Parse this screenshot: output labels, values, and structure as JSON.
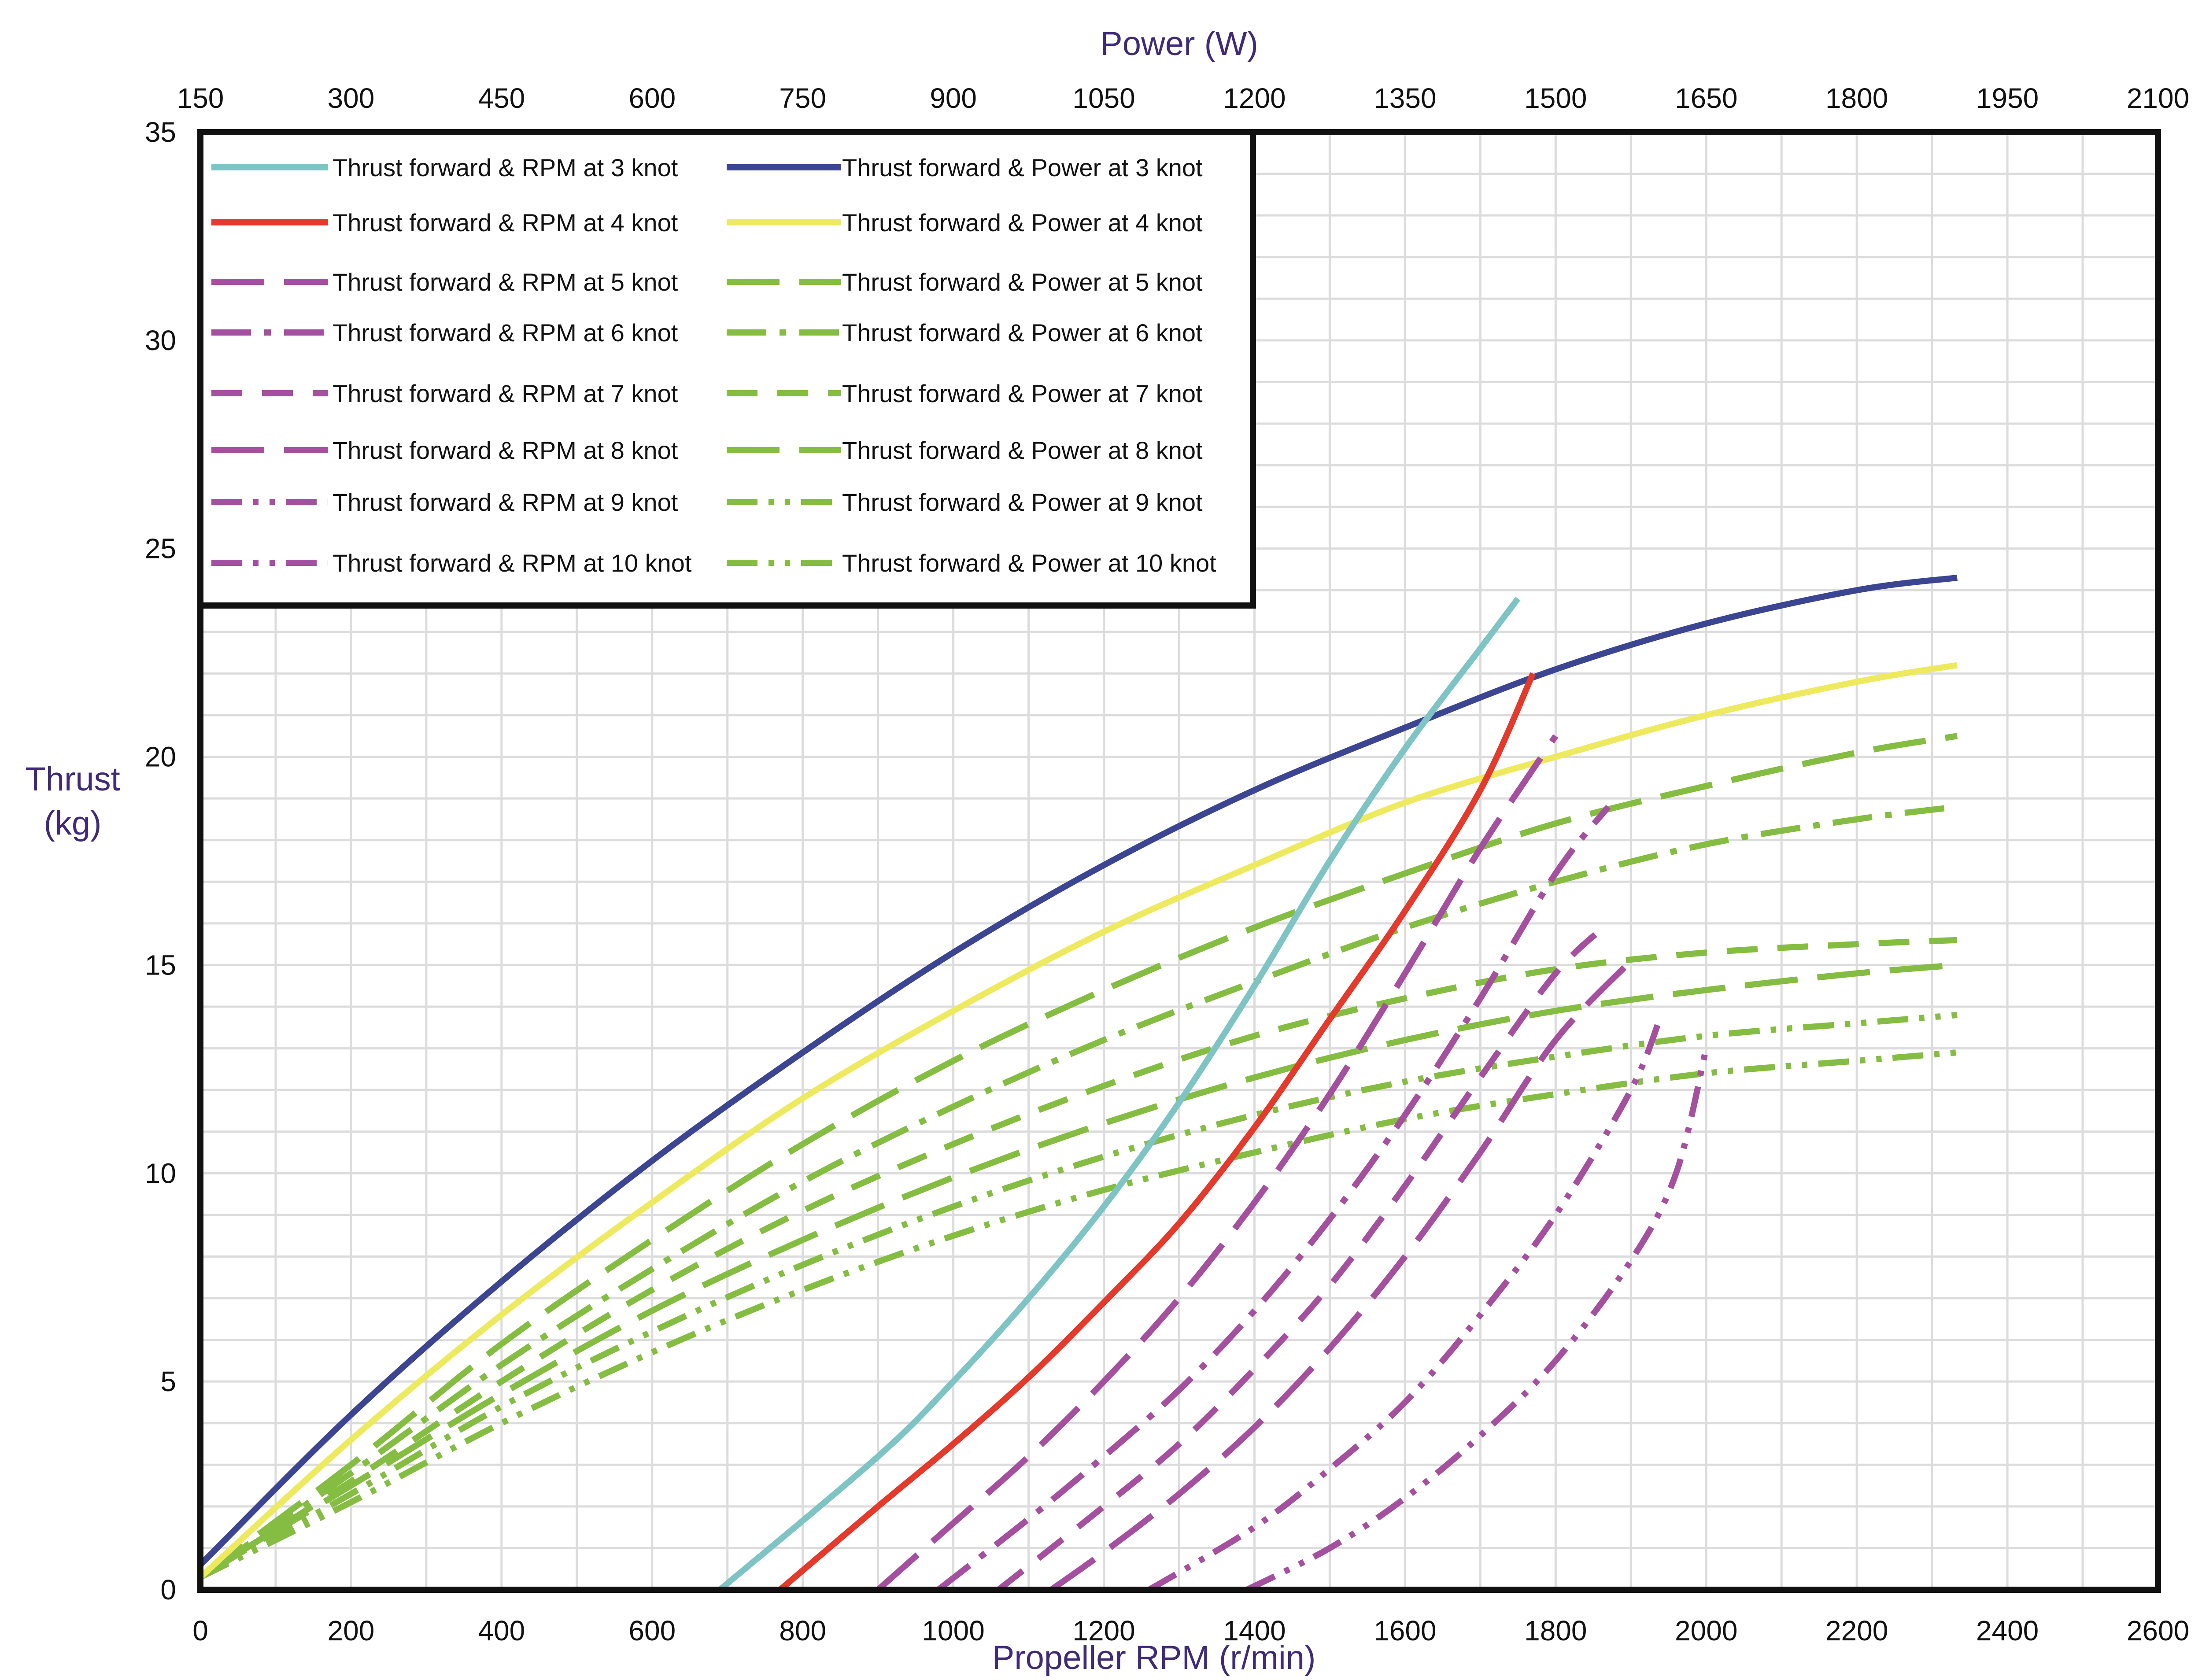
{
  "chart_data": {
    "type": "line",
    "top_axis": {
      "label": "Power (W)",
      "ticks": [
        "150",
        "300",
        "450",
        "600",
        "750",
        "900",
        "1050",
        "1200",
        "1350",
        "1500",
        "1650",
        "1800",
        "1950",
        "2100"
      ]
    },
    "bottom_axis": {
      "label": "Propeller RPM (r/min)",
      "ticks": [
        "0",
        "200",
        "400",
        "600",
        "800",
        "1000",
        "1200",
        "1400",
        "1600",
        "1800",
        "2000",
        "2200",
        "2400",
        "2600"
      ]
    },
    "left_axis": {
      "label_line1": "Thrust",
      "label_line2": "(kg)",
      "ticks": [
        "0",
        "5",
        "10",
        "15",
        "20",
        "25",
        "30",
        "35"
      ]
    },
    "xlim_rpm": [
      0,
      2600
    ],
    "xlim_power": [
      150,
      2100
    ],
    "ylim": [
      0,
      35
    ],
    "grid": true,
    "legend_position": "top-left",
    "colors": {
      "rpm3": "#7fc4c4",
      "rpm4": "#e4392b",
      "rpm_other": "#a5509f",
      "power3": "#3b4591",
      "power4": "#eeea5f",
      "power_other": "#84bd41",
      "axis_title": "#3f2a7a"
    },
    "series": [
      {
        "name": "Thrust forward &  RPM at 3 knot",
        "axis": "rpm",
        "dash": "solid",
        "color": "#7fc4c4",
        "x": [
          690,
          900,
          1000,
          1100,
          1200,
          1300,
          1400,
          1500,
          1600,
          1700,
          1750
        ],
        "y": [
          0,
          3.2,
          5.0,
          7.0,
          9.2,
          11.7,
          14.5,
          17.5,
          20.2,
          22.6,
          23.8
        ]
      },
      {
        "name": "Thrust forward & Power at 3 knot",
        "axis": "power",
        "dash": "solid",
        "color": "#3b4591",
        "x": [
          150,
          300,
          450,
          600,
          750,
          900,
          1050,
          1200,
          1350,
          1500,
          1650,
          1800,
          1900
        ],
        "y": [
          0.6,
          4.2,
          7.4,
          10.3,
          12.9,
          15.3,
          17.4,
          19.2,
          20.7,
          22.1,
          23.2,
          24.0,
          24.3
        ]
      },
      {
        "name": "Thrust forward &  RPM at 4 knot",
        "axis": "rpm",
        "dash": "solid",
        "color": "#e4392b",
        "x": [
          770,
          900,
          1000,
          1100,
          1200,
          1300,
          1400,
          1500,
          1600,
          1700,
          1770
        ],
        "y": [
          0,
          2.0,
          3.5,
          5.1,
          6.9,
          8.8,
          11.1,
          13.7,
          16.3,
          19.2,
          22.0
        ]
      },
      {
        "name": "Thrust forward & Power at 4 knot",
        "axis": "power",
        "dash": "solid",
        "color": "#eeea5f",
        "x": [
          150,
          300,
          450,
          600,
          750,
          900,
          1050,
          1200,
          1350,
          1500,
          1650,
          1800,
          1900
        ],
        "y": [
          0.3,
          3.6,
          6.6,
          9.3,
          11.8,
          13.9,
          15.8,
          17.4,
          18.9,
          20.0,
          21.0,
          21.8,
          22.2
        ]
      },
      {
        "name": "Thrust forward &  RPM at 5 knot",
        "axis": "rpm",
        "dash": "longdash",
        "color": "#a5509f",
        "x": [
          900,
          1000,
          1100,
          1200,
          1300,
          1400,
          1500,
          1600,
          1700,
          1800
        ],
        "y": [
          0,
          1.6,
          3.2,
          5.0,
          7.0,
          9.3,
          11.9,
          14.8,
          17.8,
          20.5
        ]
      },
      {
        "name": "Thrust forward & Power at 5 knot",
        "axis": "power",
        "dash": "longdash",
        "color": "#84bd41",
        "x": [
          150,
          300,
          450,
          600,
          750,
          900,
          1050,
          1200,
          1350,
          1500,
          1650,
          1800,
          1900
        ],
        "y": [
          0.3,
          3.0,
          5.9,
          8.4,
          10.7,
          12.7,
          14.4,
          15.9,
          17.2,
          18.4,
          19.3,
          20.1,
          20.5
        ]
      },
      {
        "name": "Thrust forward &  RPM at 6 knot",
        "axis": "rpm",
        "dash": "dashdot",
        "color": "#a5509f",
        "x": [
          980,
          1100,
          1200,
          1300,
          1400,
          1500,
          1600,
          1700,
          1800,
          1870
        ],
        "y": [
          0,
          1.7,
          3.2,
          4.8,
          6.7,
          8.9,
          11.4,
          14.2,
          17.2,
          18.8
        ]
      },
      {
        "name": "Thrust forward & Power at 6 knot",
        "axis": "power",
        "dash": "dashdot",
        "color": "#84bd41",
        "x": [
          150,
          300,
          450,
          600,
          750,
          900,
          1050,
          1200,
          1350,
          1500,
          1650,
          1800,
          1900
        ],
        "y": [
          0.3,
          2.8,
          5.4,
          7.7,
          9.8,
          11.6,
          13.2,
          14.6,
          15.9,
          17.0,
          17.9,
          18.5,
          18.8
        ]
      },
      {
        "name": "Thrust forward &  RPM at 7 knot",
        "axis": "rpm",
        "dash": "dashed",
        "color": "#a5509f",
        "x": [
          1060,
          1200,
          1300,
          1400,
          1500,
          1600,
          1700,
          1800,
          1870
        ],
        "y": [
          0,
          2.0,
          3.5,
          5.3,
          7.3,
          9.7,
          12.3,
          14.8,
          16.0
        ]
      },
      {
        "name": "Thrust forward & Power at 7 knot",
        "axis": "power",
        "dash": "dashed",
        "color": "#84bd41",
        "x": [
          150,
          300,
          450,
          600,
          750,
          900,
          1050,
          1200,
          1350,
          1500,
          1650,
          1800,
          1900
        ],
        "y": [
          0.3,
          2.6,
          5.0,
          7.2,
          9.1,
          10.7,
          12.1,
          13.3,
          14.2,
          14.9,
          15.3,
          15.5,
          15.6
        ]
      },
      {
        "name": "Thrust forward &  RPM at 8 knot",
        "axis": "rpm",
        "dash": "longdash",
        "color": "#a5509f",
        "x": [
          1130,
          1200,
          1300,
          1400,
          1500,
          1600,
          1700,
          1800,
          1900
        ],
        "y": [
          0,
          0.9,
          2.3,
          3.9,
          5.8,
          8.0,
          10.5,
          13.2,
          15.1
        ]
      },
      {
        "name": "Thrust forward & Power at 8 knot",
        "axis": "power",
        "dash": "longdash",
        "color": "#84bd41",
        "x": [
          150,
          300,
          450,
          600,
          750,
          900,
          1050,
          1200,
          1350,
          1500,
          1650,
          1800,
          1900
        ],
        "y": [
          0.3,
          2.5,
          4.7,
          6.7,
          8.4,
          9.9,
          11.2,
          12.3,
          13.2,
          13.9,
          14.4,
          14.8,
          15.0
        ]
      },
      {
        "name": "Thrust forward &  RPM at 9 knot",
        "axis": "rpm",
        "dash": "dashdotdot",
        "color": "#a5509f",
        "x": [
          1260,
          1400,
          1500,
          1600,
          1700,
          1800,
          1900,
          1940
        ],
        "y": [
          0,
          1.5,
          2.9,
          4.5,
          6.6,
          9.0,
          12.0,
          13.8
        ]
      },
      {
        "name": "Thrust forward & Power at 9 knot",
        "axis": "power",
        "dash": "dashdotdot",
        "color": "#84bd41",
        "x": [
          150,
          300,
          450,
          600,
          750,
          900,
          1050,
          1200,
          1350,
          1500,
          1650,
          1800,
          1900
        ],
        "y": [
          0.3,
          2.3,
          4.4,
          6.2,
          7.8,
          9.2,
          10.4,
          11.4,
          12.2,
          12.8,
          13.3,
          13.6,
          13.8
        ]
      },
      {
        "name": "Thrust forward &  RPM at 10 knot",
        "axis": "rpm",
        "dash": "dashdotdot",
        "color": "#a5509f",
        "x": [
          1390,
          1500,
          1600,
          1700,
          1800,
          1900,
          1960,
          2000
        ],
        "y": [
          0,
          1.0,
          2.2,
          3.7,
          5.5,
          7.9,
          10.0,
          13.0
        ]
      },
      {
        "name": "Thrust forward & Power at 10 knot",
        "axis": "power",
        "dash": "dashdotdot",
        "color": "#84bd41",
        "x": [
          150,
          300,
          450,
          600,
          750,
          900,
          1050,
          1200,
          1350,
          1500,
          1650,
          1800,
          1900
        ],
        "y": [
          0.3,
          2.1,
          4.0,
          5.7,
          7.2,
          8.5,
          9.6,
          10.5,
          11.3,
          11.9,
          12.4,
          12.7,
          12.9
        ]
      }
    ],
    "legend_left": [
      "Thrust forward &  RPM at 3 knot",
      "Thrust forward &  RPM at 4 knot",
      "Thrust forward &  RPM at 5 knot",
      "Thrust forward &  RPM at 6 knot",
      "Thrust forward &  RPM at 7 knot",
      "Thrust forward &  RPM at 8 knot",
      "Thrust forward &  RPM at 9 knot",
      "Thrust forward &  RPM at 10 knot"
    ],
    "legend_right": [
      "Thrust forward & Power at 3 knot",
      "Thrust forward & Power at 4 knot",
      "Thrust forward & Power at 5 knot",
      "Thrust forward & Power at 6 knot",
      "Thrust forward & Power at 7 knot",
      "Thrust forward & Power at 8 knot",
      "Thrust forward & Power at 9 knot",
      "Thrust forward & Power at 10 knot"
    ]
  }
}
